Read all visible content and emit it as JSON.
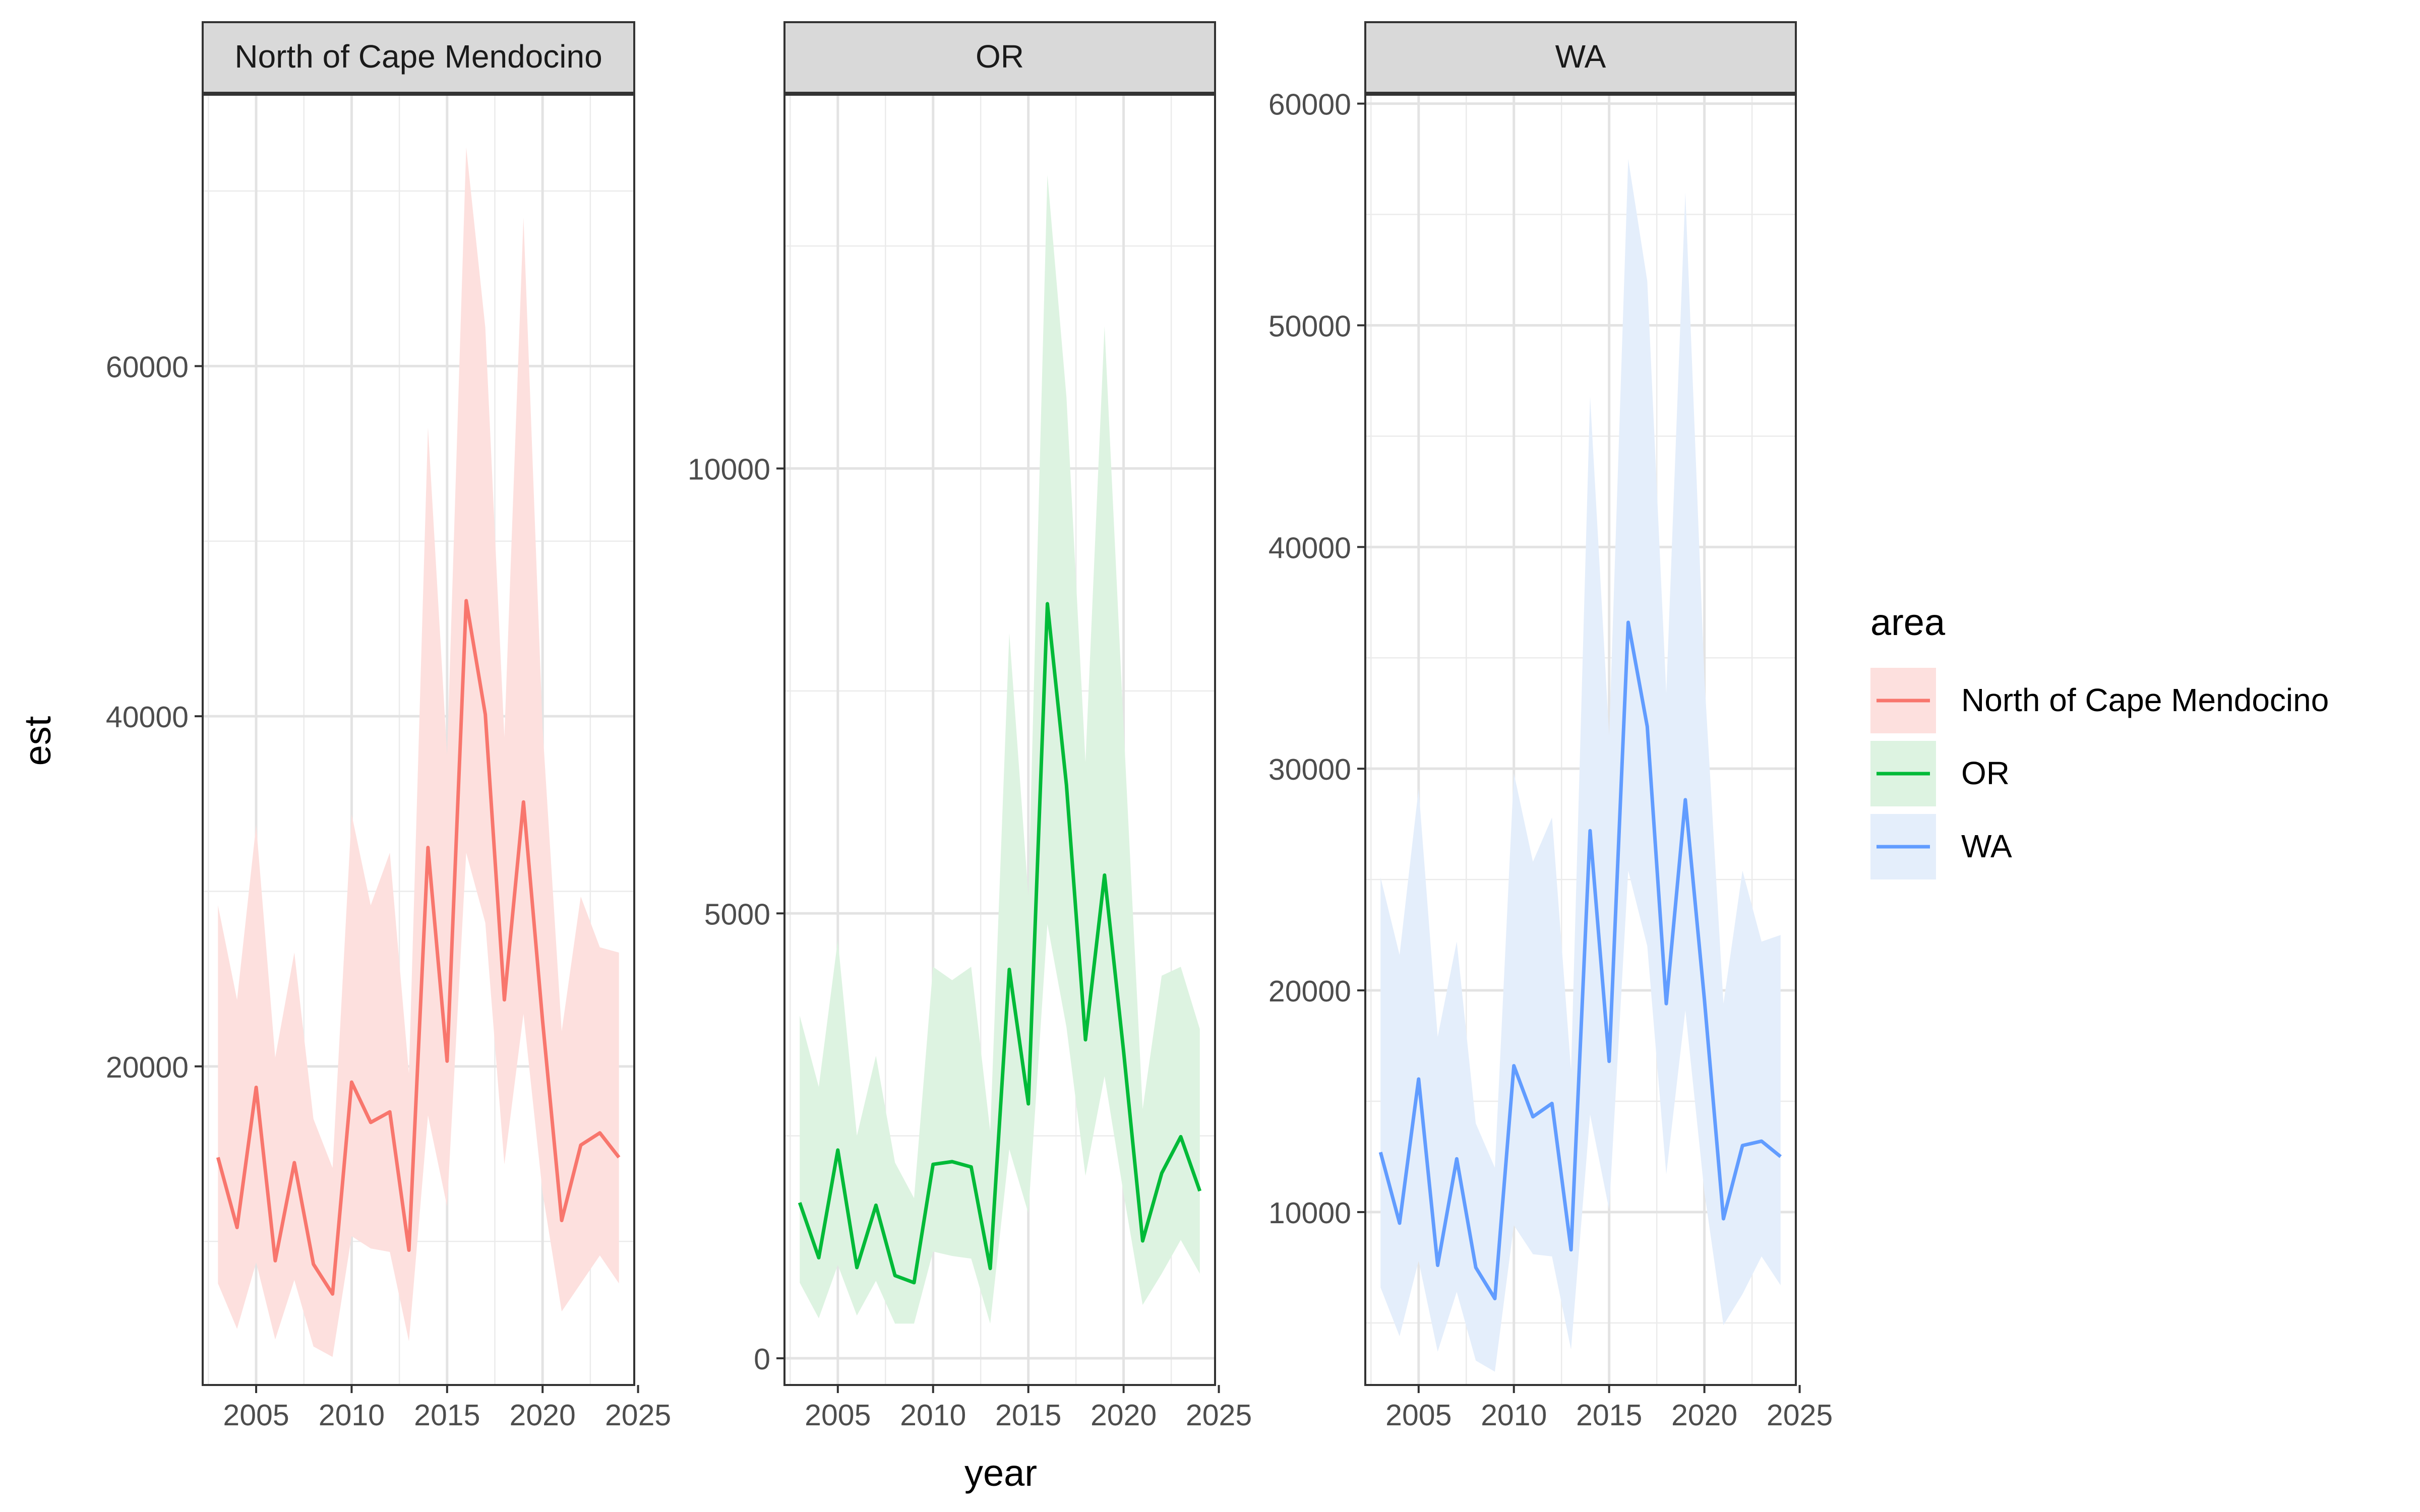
{
  "chart_data": {
    "type": "line",
    "xlabel": "year",
    "ylabel": "est",
    "legend": {
      "title": "area",
      "placement": "right",
      "entries": [
        "North of Cape Mendocino",
        "OR",
        "WA"
      ]
    },
    "grid": true,
    "facet_scales": "free_y",
    "x": [
      2003,
      2004,
      2005,
      2006,
      2007,
      2008,
      2009,
      2010,
      2011,
      2012,
      2013,
      2014,
      2015,
      2016,
      2017,
      2018,
      2019,
      2020,
      2021,
      2022,
      2023,
      2024
    ],
    "xlim": [
      2002.2,
      2024.8
    ],
    "xticks": [
      2005,
      2010,
      2015,
      2020,
      2025
    ],
    "panels": [
      {
        "strip": "North of Cape Mendocino",
        "color": "#F8766D",
        "fill": "#FDE0DE",
        "ylim": [
          1800,
          75500
        ],
        "yticks": [
          20000,
          40000,
          60000
        ],
        "est": [
          14800,
          10800,
          18800,
          8900,
          14500,
          8700,
          7000,
          19100,
          16800,
          17400,
          9500,
          32500,
          20300,
          46600,
          40100,
          23800,
          35100,
          22600,
          11200,
          15500,
          16200,
          14800
        ],
        "lower": [
          7600,
          5000,
          8800,
          4400,
          7800,
          4000,
          3400,
          10300,
          9600,
          9400,
          4300,
          17200,
          12000,
          32200,
          28200,
          14400,
          23000,
          12800,
          6000,
          7600,
          9200,
          7600
        ],
        "upper": [
          29200,
          23800,
          33800,
          20500,
          26500,
          17000,
          14200,
          34400,
          29200,
          32200,
          19600,
          56500,
          37800,
          72500,
          62200,
          38800,
          68500,
          39300,
          22000,
          29700,
          26800,
          26500
        ]
      },
      {
        "strip": "OR",
        "color": "#00BA38",
        "fill": "#DDF3E1",
        "ylim": [
          -300,
          14200
        ],
        "yticks": [
          0,
          5000,
          10000
        ],
        "est": [
          1750,
          1130,
          2340,
          1020,
          1720,
          930,
          850,
          2180,
          2210,
          2150,
          1010,
          4370,
          2860,
          8480,
          6440,
          3580,
          5430,
          3450,
          1320,
          2080,
          2490,
          1880
        ],
        "lower": [
          850,
          450,
          1050,
          480,
          870,
          390,
          390,
          1200,
          1150,
          1120,
          390,
          2350,
          1630,
          4880,
          3720,
          2050,
          3170,
          1850,
          600,
          950,
          1330,
          950
        ],
        "upper": [
          3850,
          3050,
          4700,
          2500,
          3400,
          2200,
          1800,
          4400,
          4250,
          4400,
          2550,
          8150,
          5200,
          13300,
          10800,
          6700,
          11600,
          7100,
          2800,
          4300,
          4400,
          3700
        ]
      },
      {
        "strip": "WA",
        "color": "#619CFF",
        "fill": "#E4EEFB",
        "ylim": [
          2200,
          60400
        ],
        "yticks": [
          10000,
          20000,
          30000,
          40000,
          50000,
          60000
        ],
        "est": [
          12700,
          9500,
          16000,
          7600,
          12400,
          7500,
          6100,
          16600,
          14300,
          14900,
          8300,
          27200,
          16800,
          36600,
          31900,
          19400,
          28600,
          19600,
          9700,
          13000,
          13200,
          12500
        ],
        "lower": [
          6600,
          4400,
          7800,
          3700,
          6400,
          3300,
          2800,
          9400,
          8100,
          8000,
          3800,
          14400,
          10100,
          25400,
          22000,
          11700,
          19100,
          10900,
          4900,
          6300,
          8000,
          6700
        ],
        "upper": [
          25100,
          21600,
          29100,
          17900,
          22200,
          14000,
          12000,
          29800,
          25800,
          27800,
          16400,
          46800,
          31500,
          57500,
          52000,
          33400,
          56000,
          34100,
          19400,
          25400,
          22200,
          22500
        ]
      }
    ]
  }
}
